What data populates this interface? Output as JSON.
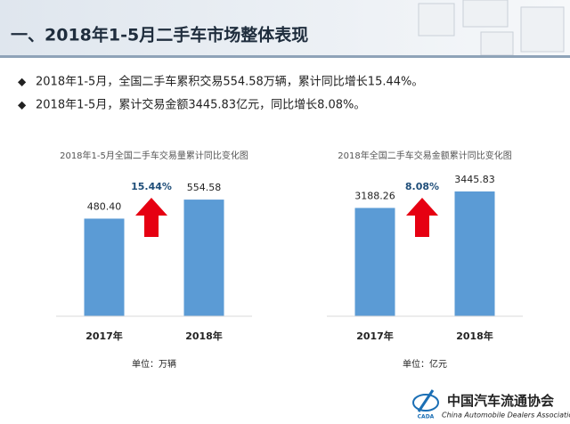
{
  "header": {
    "title": "一、2018年1-5月二手车市场整体表现"
  },
  "bullets": [
    "2018年1-5月，全国二手车累积交易554.58万辆，累计同比增长15.44%。",
    "2018年1-5月，累计交易金额3445.83亿元，同比增长8.08%。"
  ],
  "logo": {
    "name": "中国汽车流通协会",
    "english": "China Automobile Dealers Association",
    "abbr": "CADA"
  },
  "chart_data": [
    {
      "type": "bar",
      "title": "2018年1-5月全国二手车交易量累计同比变化图",
      "categories": [
        "2017年",
        "2018年"
      ],
      "values": [
        480.4,
        554.58
      ],
      "value_labels": [
        "480.40",
        "554.58"
      ],
      "color": "#5b9bd5",
      "ylim": [
        100,
        600
      ],
      "annotation": "15.44%",
      "unit": "单位：万辆"
    },
    {
      "type": "bar",
      "title": "2018年全国二手车交易金额累计同比变化图",
      "categories": [
        "2017年",
        "2018年"
      ],
      "values": [
        3188.26,
        3445.83
      ],
      "color": "#5b9bd5",
      "ylim": [
        1500,
        3500
      ],
      "annotation": "8.08%",
      "unit": "单位：亿元"
    }
  ]
}
